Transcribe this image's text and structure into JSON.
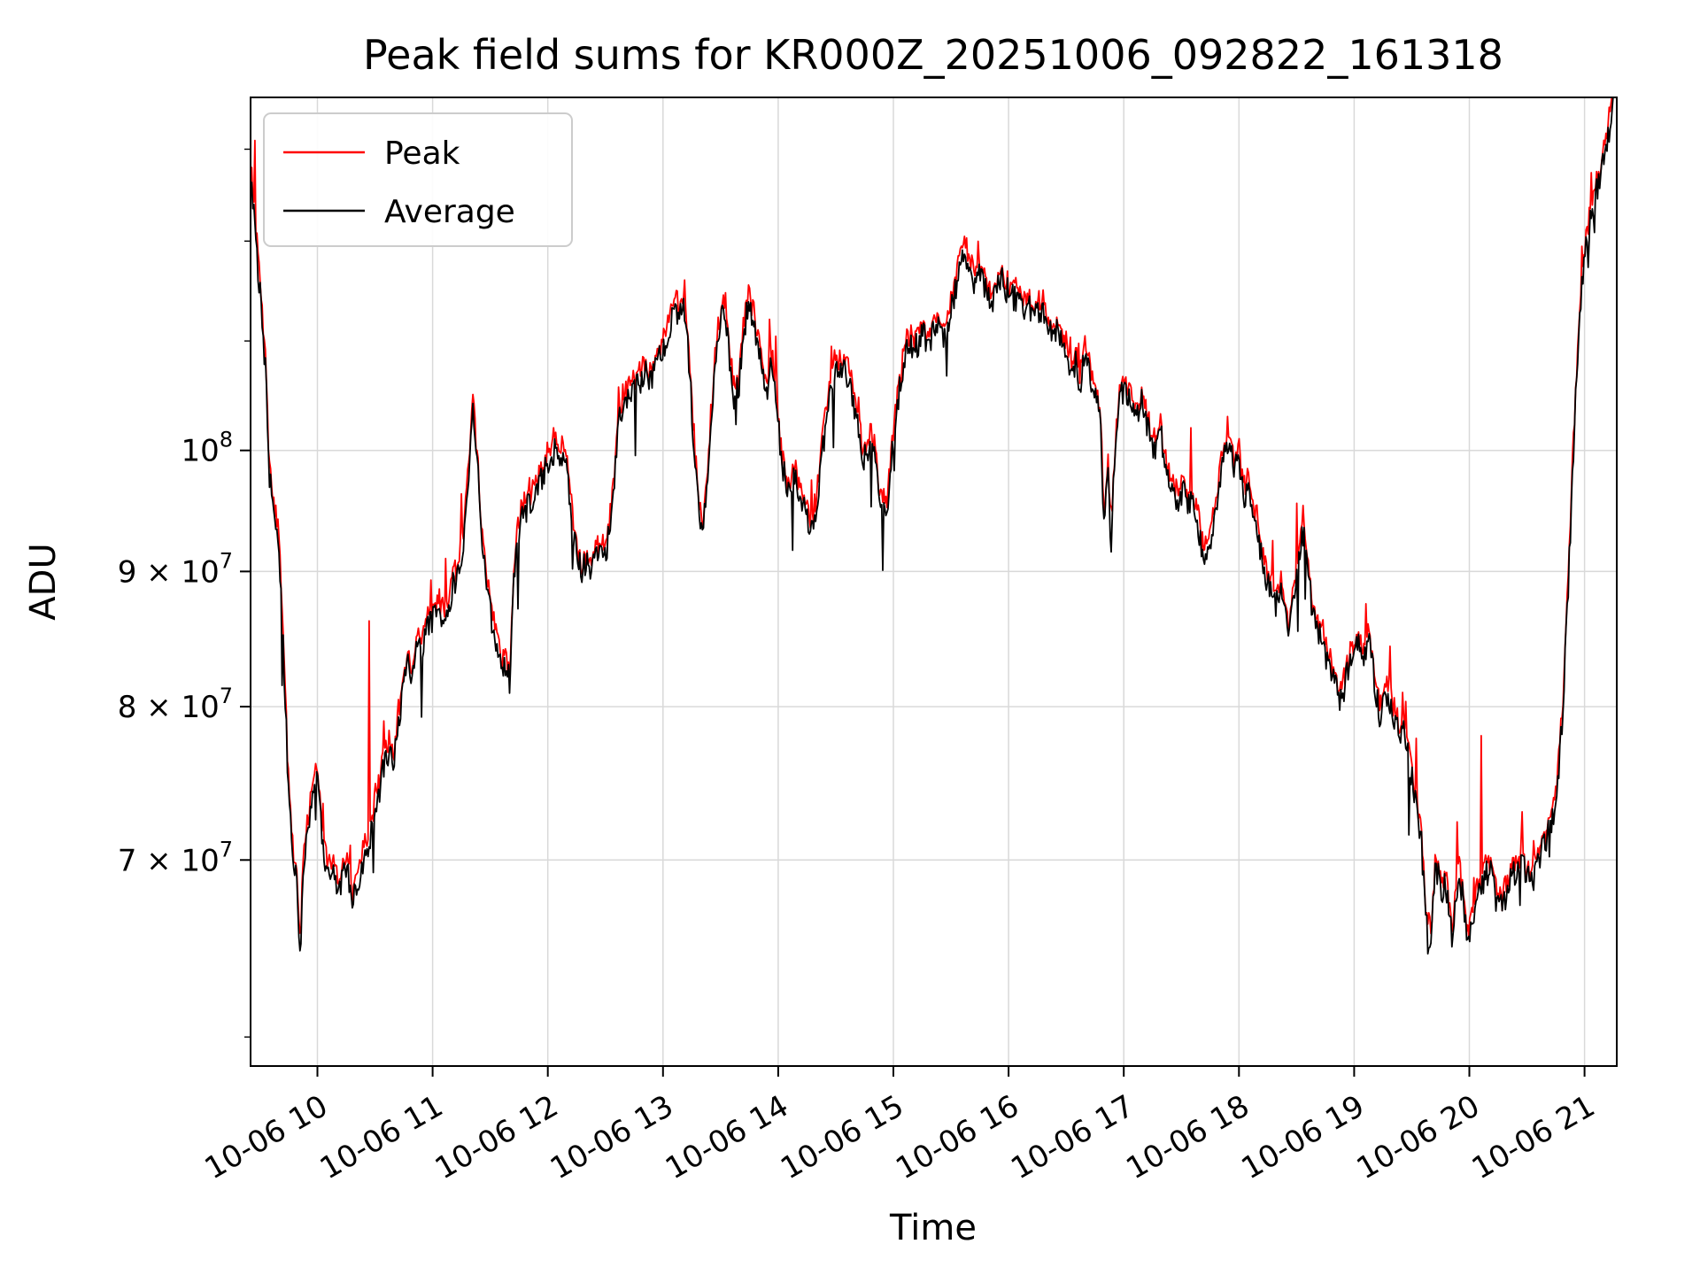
{
  "figure": {
    "background": "#ffffff"
  },
  "chart_data": {
    "type": "line",
    "title": "Peak field sums for KR000Z_20251006_092822_161318",
    "xlabel": "Time",
    "ylabel": "ADU",
    "y_scale": "log",
    "grid": true,
    "legend_position": "upper-left",
    "xlim": [
      9.42,
      21.28
    ],
    "ylim": [
      58500000,
      136000000
    ],
    "x_ticks": [
      {
        "value": 10,
        "label": "10-06 10"
      },
      {
        "value": 11,
        "label": "10-06 11"
      },
      {
        "value": 12,
        "label": "10-06 12"
      },
      {
        "value": 13,
        "label": "10-06 13"
      },
      {
        "value": 14,
        "label": "10-06 14"
      },
      {
        "value": 15,
        "label": "10-06 15"
      },
      {
        "value": 16,
        "label": "10-06 16"
      },
      {
        "value": 17,
        "label": "10-06 17"
      },
      {
        "value": 18,
        "label": "10-06 18"
      },
      {
        "value": 19,
        "label": "10-06 19"
      },
      {
        "value": 20,
        "label": "10-06 20"
      },
      {
        "value": 21,
        "label": "10-06 21"
      }
    ],
    "y_ticks": [
      {
        "value": 70000000,
        "mantissa": "7 × 10",
        "exponent": "7"
      },
      {
        "value": 80000000,
        "mantissa": "8 × 10",
        "exponent": "7"
      },
      {
        "value": 90000000,
        "mantissa": "9 × 10",
        "exponent": "7"
      },
      {
        "value": 100000000,
        "mantissa": "10",
        "exponent": "8"
      }
    ],
    "y_minor_ticks": [
      60000000,
      110000000,
      120000000,
      130000000
    ],
    "series": [
      {
        "name": "Peak",
        "color": "#ff0000"
      },
      {
        "name": "Average",
        "color": "#000000"
      }
    ],
    "value_unit": 10000000,
    "average_anchors": [
      [
        9.43,
        12.6
      ],
      [
        9.47,
        11.9
      ],
      [
        9.51,
        11.4
      ],
      [
        9.55,
        10.7
      ],
      [
        9.58,
        9.8
      ],
      [
        9.62,
        9.45
      ],
      [
        9.66,
        9.3
      ],
      [
        9.7,
        8.5
      ],
      [
        9.74,
        7.6
      ],
      [
        9.78,
        7.1
      ],
      [
        9.82,
        6.85
      ],
      [
        9.85,
        6.45
      ],
      [
        9.88,
        6.95
      ],
      [
        9.92,
        7.2
      ],
      [
        9.96,
        7.45
      ],
      [
        10.0,
        7.5
      ],
      [
        10.03,
        7.25
      ],
      [
        10.06,
        7.0
      ],
      [
        10.1,
        6.9
      ],
      [
        10.14,
        6.95
      ],
      [
        10.18,
        6.8
      ],
      [
        10.22,
        6.9
      ],
      [
        10.26,
        6.95
      ],
      [
        10.3,
        6.7
      ],
      [
        10.34,
        6.85
      ],
      [
        10.38,
        6.95
      ],
      [
        10.42,
        7.05
      ],
      [
        10.46,
        7.15
      ],
      [
        10.5,
        7.35
      ],
      [
        10.54,
        7.45
      ],
      [
        10.58,
        7.6
      ],
      [
        10.62,
        7.7
      ],
      [
        10.66,
        7.6
      ],
      [
        10.7,
        7.9
      ],
      [
        10.74,
        8.1
      ],
      [
        10.78,
        8.3
      ],
      [
        10.82,
        8.2
      ],
      [
        10.86,
        8.45
      ],
      [
        10.9,
        8.4
      ],
      [
        10.94,
        8.55
      ],
      [
        10.98,
        8.6
      ],
      [
        11.02,
        8.65
      ],
      [
        11.06,
        8.7
      ],
      [
        11.1,
        8.6
      ],
      [
        11.14,
        8.75
      ],
      [
        11.18,
        8.9
      ],
      [
        11.22,
        9.0
      ],
      [
        11.26,
        9.15
      ],
      [
        11.3,
        9.6
      ],
      [
        11.35,
        10.35
      ],
      [
        11.4,
        9.7
      ],
      [
        11.44,
        9.15
      ],
      [
        11.48,
        8.8
      ],
      [
        11.52,
        8.6
      ],
      [
        11.56,
        8.45
      ],
      [
        11.6,
        8.2
      ],
      [
        11.64,
        8.3
      ],
      [
        11.67,
        8.15
      ],
      [
        11.7,
        8.85
      ],
      [
        11.74,
        9.3
      ],
      [
        11.78,
        9.45
      ],
      [
        11.82,
        9.5
      ],
      [
        11.86,
        9.55
      ],
      [
        11.9,
        9.65
      ],
      [
        11.94,
        9.75
      ],
      [
        11.98,
        9.85
      ],
      [
        12.02,
        9.95
      ],
      [
        12.06,
        10.0
      ],
      [
        12.1,
        9.95
      ],
      [
        12.14,
        10.0
      ],
      [
        12.18,
        9.7
      ],
      [
        12.22,
        9.3
      ],
      [
        12.26,
        9.1
      ],
      [
        12.3,
        9.0
      ],
      [
        12.34,
        9.1
      ],
      [
        12.38,
        9.0
      ],
      [
        12.42,
        9.1
      ],
      [
        12.46,
        9.15
      ],
      [
        12.5,
        9.1
      ],
      [
        12.54,
        9.35
      ],
      [
        12.58,
        9.8
      ],
      [
        12.62,
        10.25
      ],
      [
        12.66,
        10.45
      ],
      [
        12.7,
        10.5
      ],
      [
        12.74,
        10.55
      ],
      [
        12.78,
        10.6
      ],
      [
        12.82,
        10.65
      ],
      [
        12.86,
        10.7
      ],
      [
        12.9,
        10.6
      ],
      [
        12.94,
        10.75
      ],
      [
        12.98,
        10.85
      ],
      [
        13.02,
        11.0
      ],
      [
        13.06,
        11.15
      ],
      [
        13.1,
        11.35
      ],
      [
        13.14,
        11.25
      ],
      [
        13.18,
        11.35
      ],
      [
        13.22,
        10.9
      ],
      [
        13.26,
        10.2
      ],
      [
        13.3,
        9.6
      ],
      [
        13.34,
        9.3
      ],
      [
        13.38,
        9.6
      ],
      [
        13.42,
        10.3
      ],
      [
        13.46,
        10.9
      ],
      [
        13.5,
        11.2
      ],
      [
        13.54,
        11.3
      ],
      [
        13.58,
        10.8
      ],
      [
        13.62,
        10.45
      ],
      [
        13.66,
        10.6
      ],
      [
        13.7,
        11.05
      ],
      [
        13.74,
        11.4
      ],
      [
        13.78,
        11.25
      ],
      [
        13.82,
        10.95
      ],
      [
        13.86,
        10.7
      ],
      [
        13.9,
        10.45
      ],
      [
        13.94,
        10.85
      ],
      [
        13.98,
        10.5
      ],
      [
        14.02,
        10.0
      ],
      [
        14.06,
        9.75
      ],
      [
        14.1,
        9.6
      ],
      [
        14.14,
        9.8
      ],
      [
        14.18,
        9.6
      ],
      [
        14.22,
        9.5
      ],
      [
        14.26,
        9.4
      ],
      [
        14.3,
        9.35
      ],
      [
        14.34,
        9.6
      ],
      [
        14.38,
        9.95
      ],
      [
        14.42,
        10.3
      ],
      [
        14.46,
        10.6
      ],
      [
        14.5,
        10.8
      ],
      [
        14.54,
        10.7
      ],
      [
        14.58,
        10.75
      ],
      [
        14.62,
        10.6
      ],
      [
        14.66,
        10.4
      ],
      [
        14.7,
        10.15
      ],
      [
        14.74,
        9.9
      ],
      [
        14.78,
        10.0
      ],
      [
        14.82,
        10.1
      ],
      [
        14.86,
        9.75
      ],
      [
        14.9,
        9.5
      ],
      [
        14.94,
        9.45
      ],
      [
        14.98,
        9.9
      ],
      [
        15.02,
        10.3
      ],
      [
        15.06,
        10.6
      ],
      [
        15.1,
        10.85
      ],
      [
        15.14,
        11.0
      ],
      [
        15.18,
        10.9
      ],
      [
        15.22,
        11.0
      ],
      [
        15.26,
        11.05
      ],
      [
        15.3,
        10.95
      ],
      [
        15.34,
        11.05
      ],
      [
        15.38,
        11.15
      ],
      [
        15.42,
        11.0
      ],
      [
        15.46,
        11.15
      ],
      [
        15.5,
        11.3
      ],
      [
        15.54,
        11.5
      ],
      [
        15.58,
        11.75
      ],
      [
        15.62,
        11.9
      ],
      [
        15.66,
        11.7
      ],
      [
        15.7,
        11.6
      ],
      [
        15.74,
        11.75
      ],
      [
        15.78,
        11.55
      ],
      [
        15.82,
        11.4
      ],
      [
        15.86,
        11.35
      ],
      [
        15.9,
        11.5
      ],
      [
        15.94,
        11.6
      ],
      [
        15.98,
        11.5
      ],
      [
        16.02,
        11.45
      ],
      [
        16.06,
        11.4
      ],
      [
        16.1,
        11.5
      ],
      [
        16.14,
        11.3
      ],
      [
        16.18,
        11.35
      ],
      [
        16.22,
        11.2
      ],
      [
        16.26,
        11.3
      ],
      [
        16.3,
        11.25
      ],
      [
        16.34,
        11.15
      ],
      [
        16.38,
        11.0
      ],
      [
        16.42,
        11.1
      ],
      [
        16.46,
        11.05
      ],
      [
        16.5,
        10.9
      ],
      [
        16.54,
        10.7
      ],
      [
        16.58,
        10.8
      ],
      [
        16.62,
        10.6
      ],
      [
        16.66,
        10.85
      ],
      [
        16.7,
        10.7
      ],
      [
        16.74,
        10.55
      ],
      [
        16.78,
        10.35
      ],
      [
        16.8,
        10.2
      ],
      [
        16.83,
        9.3
      ],
      [
        16.86,
        9.9
      ],
      [
        16.89,
        9.2
      ],
      [
        16.92,
        9.9
      ],
      [
        16.96,
        10.4
      ],
      [
        17.0,
        10.6
      ],
      [
        17.04,
        10.45
      ],
      [
        17.08,
        10.35
      ],
      [
        17.12,
        10.3
      ],
      [
        17.16,
        10.5
      ],
      [
        17.2,
        10.25
      ],
      [
        17.24,
        10.05
      ],
      [
        17.28,
        10.0
      ],
      [
        17.32,
        10.15
      ],
      [
        17.36,
        9.9
      ],
      [
        17.4,
        9.7
      ],
      [
        17.44,
        9.6
      ],
      [
        17.48,
        9.55
      ],
      [
        17.52,
        9.7
      ],
      [
        17.56,
        9.5
      ],
      [
        17.6,
        9.6
      ],
      [
        17.64,
        9.4
      ],
      [
        17.68,
        9.15
      ],
      [
        17.72,
        9.1
      ],
      [
        17.76,
        9.3
      ],
      [
        17.8,
        9.5
      ],
      [
        17.84,
        9.8
      ],
      [
        17.88,
        9.95
      ],
      [
        17.92,
        10.05
      ],
      [
        17.96,
        9.8
      ],
      [
        18.0,
        9.95
      ],
      [
        18.04,
        9.6
      ],
      [
        18.08,
        9.7
      ],
      [
        18.12,
        9.45
      ],
      [
        18.16,
        9.35
      ],
      [
        18.2,
        9.1
      ],
      [
        18.24,
        8.95
      ],
      [
        18.28,
        8.85
      ],
      [
        18.32,
        8.7
      ],
      [
        18.36,
        8.9
      ],
      [
        18.4,
        8.65
      ],
      [
        18.44,
        8.5
      ],
      [
        18.48,
        8.85
      ],
      [
        18.52,
        9.15
      ],
      [
        18.56,
        9.3
      ],
      [
        18.6,
        8.95
      ],
      [
        18.64,
        8.7
      ],
      [
        18.68,
        8.55
      ],
      [
        18.72,
        8.5
      ],
      [
        18.76,
        8.3
      ],
      [
        18.8,
        8.25
      ],
      [
        18.84,
        8.15
      ],
      [
        18.88,
        8.05
      ],
      [
        18.92,
        8.15
      ],
      [
        18.96,
        8.3
      ],
      [
        19.0,
        8.4
      ],
      [
        19.04,
        8.45
      ],
      [
        19.08,
        8.3
      ],
      [
        19.12,
        8.5
      ],
      [
        19.16,
        8.3
      ],
      [
        19.2,
        8.05
      ],
      [
        19.24,
        7.95
      ],
      [
        19.28,
        8.1
      ],
      [
        19.32,
        8.0
      ],
      [
        19.36,
        7.9
      ],
      [
        19.4,
        7.75
      ],
      [
        19.44,
        7.85
      ],
      [
        19.48,
        7.6
      ],
      [
        19.52,
        7.45
      ],
      [
        19.55,
        7.3
      ],
      [
        19.58,
        7.15
      ],
      [
        19.61,
        6.8
      ],
      [
        19.64,
        6.5
      ],
      [
        19.67,
        6.6
      ],
      [
        19.7,
        6.9
      ],
      [
        19.73,
        6.95
      ],
      [
        19.76,
        6.8
      ],
      [
        19.79,
        6.9
      ],
      [
        19.82,
        6.7
      ],
      [
        19.85,
        6.55
      ],
      [
        19.88,
        6.75
      ],
      [
        19.91,
        6.9
      ],
      [
        19.94,
        6.8
      ],
      [
        19.97,
        6.6
      ],
      [
        20.0,
        6.5
      ],
      [
        20.03,
        6.65
      ],
      [
        20.06,
        6.75
      ],
      [
        20.1,
        6.8
      ],
      [
        20.14,
        6.9
      ],
      [
        20.18,
        6.95
      ],
      [
        20.22,
        6.8
      ],
      [
        20.26,
        6.7
      ],
      [
        20.3,
        6.75
      ],
      [
        20.34,
        6.85
      ],
      [
        20.38,
        6.9
      ],
      [
        20.42,
        6.95
      ],
      [
        20.46,
        7.0
      ],
      [
        20.5,
        6.9
      ],
      [
        20.54,
        6.85
      ],
      [
        20.58,
        6.95
      ],
      [
        20.62,
        7.05
      ],
      [
        20.66,
        7.1
      ],
      [
        20.7,
        7.2
      ],
      [
        20.74,
        7.3
      ],
      [
        20.78,
        7.6
      ],
      [
        20.82,
        8.1
      ],
      [
        20.86,
        8.9
      ],
      [
        20.9,
        9.9
      ],
      [
        20.94,
        10.9
      ],
      [
        20.98,
        11.6
      ],
      [
        21.02,
        12.0
      ],
      [
        21.06,
        12.3
      ],
      [
        21.1,
        12.5
      ],
      [
        21.14,
        12.7
      ],
      [
        21.18,
        13.0
      ],
      [
        21.25,
        13.5
      ]
    ],
    "peak_spikes": [
      [
        9.46,
        13.1
      ],
      [
        10.45,
        8.62
      ],
      [
        11.35,
        10.5
      ],
      [
        12.05,
        10.2
      ],
      [
        13.19,
        11.6
      ],
      [
        13.74,
        11.55
      ],
      [
        14.46,
        10.95
      ],
      [
        15.62,
        12.05
      ],
      [
        16.3,
        11.5
      ],
      [
        16.66,
        11.05
      ],
      [
        17.58,
        10.2
      ],
      [
        17.9,
        10.3
      ],
      [
        18.5,
        9.55
      ],
      [
        19.1,
        8.75
      ],
      [
        19.42,
        8.1
      ],
      [
        20.1,
        7.8
      ],
      [
        20.46,
        7.3
      ]
    ],
    "noise": {
      "seed": 42,
      "samples": 1300,
      "avg_jitter": 0.012,
      "avg_dip_prob": 0.02,
      "avg_dip_max": 0.05,
      "peak_offset": 0.007,
      "peak_jitter": 0.012,
      "peak_spike_prob": 0.045,
      "peak_spike_max": 0.045
    }
  }
}
